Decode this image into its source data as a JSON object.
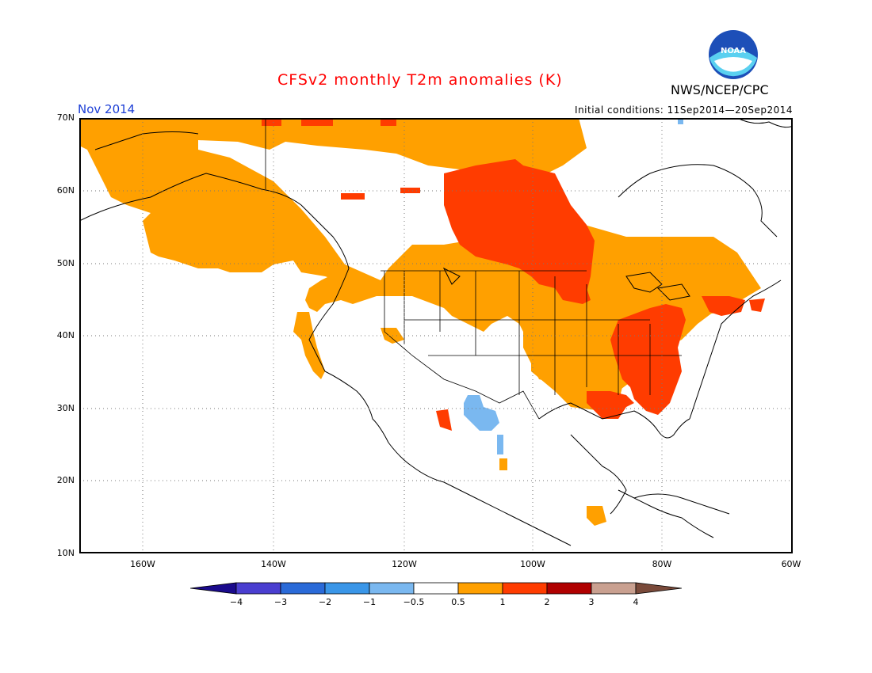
{
  "title": "CFSv2 monthly T2m anomalies (K)",
  "organization": "NWS/NCEP/CPC",
  "logo_text": "NOAA",
  "forecast_month": "Nov 2014",
  "initial_conditions": "Initial conditions: 11Sep2014—20Sep2014",
  "lat_labels": [
    "70N",
    "60N",
    "50N",
    "40N",
    "30N",
    "20N",
    "10N"
  ],
  "lon_labels": [
    "160W",
    "140W",
    "120W",
    "100W",
    "80W",
    "60W"
  ],
  "colorbar": {
    "labels": [
      "−4",
      "−3",
      "−2",
      "−1",
      "−0.5",
      "0.5",
      "1",
      "2",
      "3",
      "4"
    ],
    "colors": [
      "#1a0a8c",
      "#4a3ed0",
      "#2a6ad8",
      "#3a96e8",
      "#7ab8f0",
      "#ffffff",
      "#ffa000",
      "#ff3c00",
      "#b00000",
      "#c9a090",
      "#7a4a3a"
    ]
  },
  "anomaly_regions": [
    {
      "category": "0.5 to 1",
      "color": "#ffa000",
      "areas": [
        "Alaska North Slope",
        "Western Canada",
        "Pacific Northwest",
        "Central Plains",
        "Eastern Canada",
        "Great Lakes",
        "Ohio Valley"
      ]
    },
    {
      "category": "1 to 2",
      "color": "#ff3c00",
      "areas": [
        "Central Canada / Hudson Bay",
        "Southeast US",
        "Mid-Atlantic",
        "New England",
        "Baja California"
      ]
    },
    {
      "category": "-1 to -0.5",
      "color": "#7ab8f0",
      "areas": [
        "Northwest Mexico"
      ]
    }
  ]
}
